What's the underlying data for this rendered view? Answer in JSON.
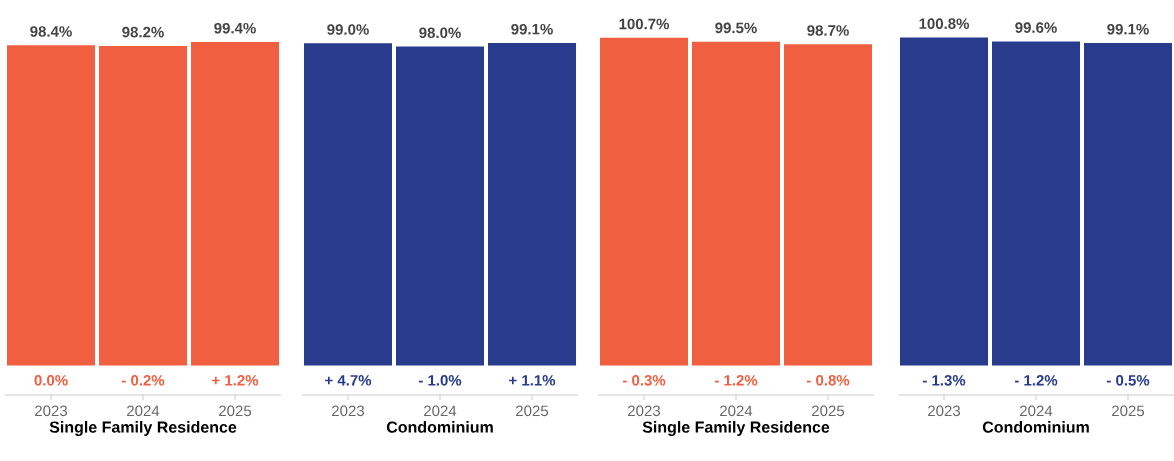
{
  "chart_data": [
    {
      "type": "bar",
      "xlabel": "Single Family Residence",
      "categories": [
        "2023",
        "2024",
        "2025"
      ],
      "values": [
        98.4,
        98.2,
        99.4
      ],
      "value_labels": [
        "98.4%",
        "98.2%",
        "99.4%"
      ],
      "color": "#ef5f40",
      "tick_labels": "x",
      "annotations": [
        "0.0%",
        "- 0.2%",
        "+ 1.2%"
      ]
    },
    {
      "type": "bar",
      "xlabel": "Condominium",
      "categories": [
        "2023",
        "2024",
        "2025"
      ],
      "values": [
        99.0,
        98.0,
        99.1
      ],
      "value_labels": [
        "99.0%",
        "98.0%",
        "99.1%"
      ],
      "color": "#283b8c",
      "tick_labels": "x",
      "annotations": [
        "+ 4.7%",
        "- 1.0%",
        "+ 1.1%"
      ]
    },
    {
      "type": "bar",
      "xlabel": "Single Family Residence",
      "categories": [
        "2023",
        "2024",
        "2025"
      ],
      "values": [
        100.7,
        99.5,
        98.7
      ],
      "value_labels": [
        "100.7%",
        "99.5%",
        "98.7%"
      ],
      "color": "#ef5f40",
      "tick_labels": "x",
      "annotations": [
        "- 0.3%",
        "- 1.2%",
        "- 0.8%"
      ]
    },
    {
      "type": "bar",
      "xlabel": "Condominium",
      "categories": [
        "2023",
        "2024",
        "2025"
      ],
      "values": [
        100.8,
        99.6,
        99.1
      ],
      "value_labels": [
        "100.8%",
        "99.6%",
        "99.1%"
      ],
      "color": "#283b8c",
      "tick_labels": "x",
      "annotations": [
        "- 1.3%",
        "- 1.2%",
        "- 0.5%"
      ]
    }
  ]
}
